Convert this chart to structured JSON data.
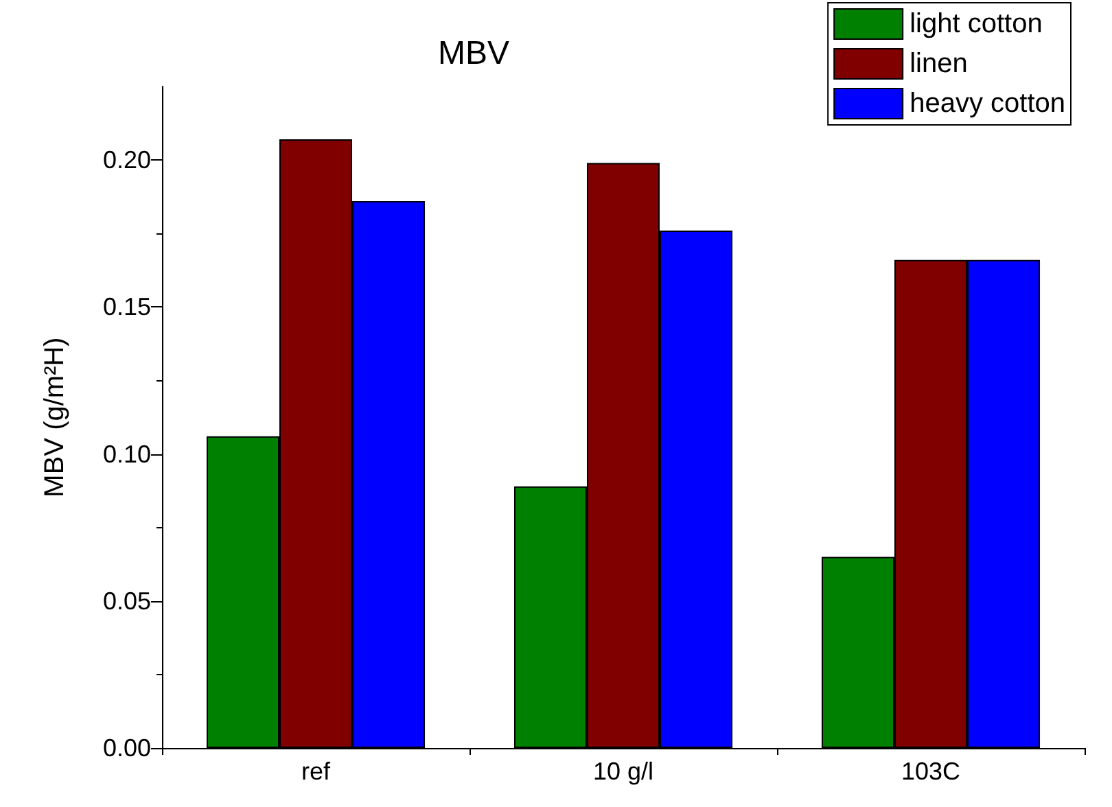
{
  "chart_data": {
    "type": "bar",
    "title": "MBV",
    "ylabel": "MBV (g/m²H)",
    "categories": [
      "ref",
      "10 g/l",
      "103C"
    ],
    "series": [
      {
        "name": "light cotton",
        "color": "#008000",
        "values": [
          0.106,
          0.089,
          0.065
        ]
      },
      {
        "name": "linen",
        "color": "#800000",
        "values": [
          0.207,
          0.199,
          0.166
        ]
      },
      {
        "name": "heavy cotton",
        "color": "#0000ff",
        "values": [
          0.186,
          0.176,
          0.166
        ]
      }
    ],
    "ylim": [
      0,
      0.225
    ],
    "yticks": [
      {
        "value": 0,
        "label": "0.00"
      },
      {
        "value": 0.05,
        "label": "0.05"
      },
      {
        "value": 0.1,
        "label": "0.10"
      },
      {
        "value": 0.15,
        "label": "0.15"
      },
      {
        "value": 0.2,
        "label": "0.20"
      }
    ],
    "grid": false,
    "legend": "top right"
  }
}
